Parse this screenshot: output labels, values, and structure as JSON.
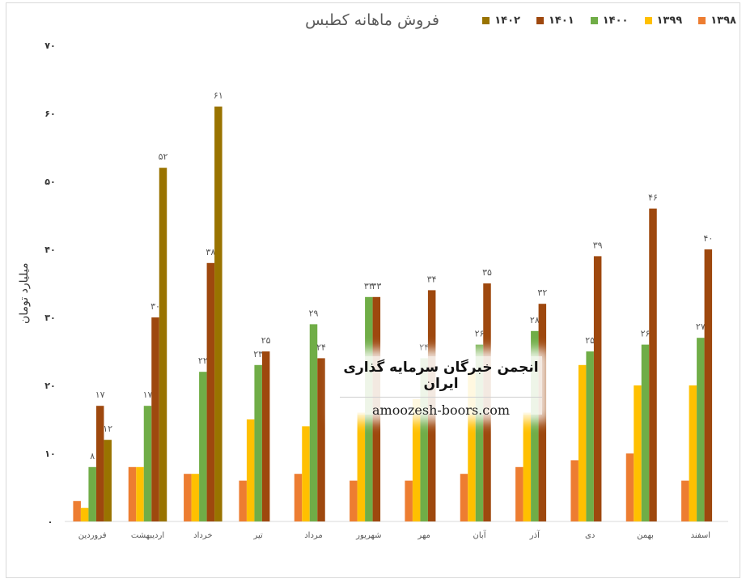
{
  "chart_data": {
    "type": "bar",
    "title": "فروش ماهانه کطبس",
    "ylabel": "میلیارد تومان",
    "ylim": [
      0,
      70
    ],
    "yticks": [
      "۰",
      "۱۰",
      "۲۰",
      "۳۰",
      "۴۰",
      "۵۰",
      "۶۰",
      "۷۰"
    ],
    "grid": false,
    "legend_position": "top-right",
    "categories": [
      "فروردین",
      "اردیبهشت",
      "خرداد",
      "تیر",
      "مرداد",
      "شهریور",
      "مهر",
      "آبان",
      "آذر",
      "دی",
      "بهمن",
      "اسفند"
    ],
    "series": [
      {
        "name": "۱۳۹۸",
        "color": "#ed7d31",
        "values": [
          3,
          8,
          7,
          6,
          7,
          6,
          6,
          7,
          8,
          9,
          10,
          6
        ],
        "labels": [
          "",
          "",
          "",
          "",
          "",
          "",
          "",
          "",
          "",
          "",
          "",
          ""
        ]
      },
      {
        "name": "۱۳۹۹",
        "color": "#ffc000",
        "values": [
          2,
          8,
          7,
          15,
          14,
          16,
          18,
          22,
          16,
          23,
          20,
          20
        ],
        "labels": [
          "",
          "",
          "",
          "",
          "",
          "",
          "",
          "",
          "",
          "",
          "",
          ""
        ]
      },
      {
        "name": "۱۴۰۰",
        "color": "#70ad47",
        "values": [
          8,
          17,
          22,
          23,
          29,
          33,
          24,
          26,
          28,
          25,
          26,
          27
        ],
        "labels": [
          "۸",
          "۱۷",
          "۲۲",
          "۲۳",
          "۲۹",
          "۳۳",
          "۲۴",
          "۲۶",
          "۲۸",
          "۲۵",
          "۲۶",
          "۲۷"
        ]
      },
      {
        "name": "۱۴۰۱",
        "color": "#9e480e",
        "values": [
          17,
          30,
          38,
          25,
          24,
          33,
          34,
          35,
          32,
          39,
          46,
          40
        ],
        "labels": [
          "۱۷",
          "۳۰",
          "۳۸",
          "۲۵",
          "۲۴",
          "۳۳",
          "۳۴",
          "۳۵",
          "۳۲",
          "۳۹",
          "۴۶",
          "۴۰"
        ]
      },
      {
        "name": "۱۴۰۲",
        "color": "#997300",
        "values": [
          12,
          52,
          61,
          null,
          null,
          null,
          null,
          null,
          null,
          null,
          null,
          null
        ],
        "labels": [
          "۱۲",
          "۵۲",
          "۶۱",
          "",
          "",
          "",
          "",
          "",
          "",
          "",
          "",
          ""
        ]
      }
    ]
  },
  "watermark": {
    "title": "انجمن خبرگان سرمایه گذاری ایران",
    "url": "amoozesh-boors.com"
  }
}
